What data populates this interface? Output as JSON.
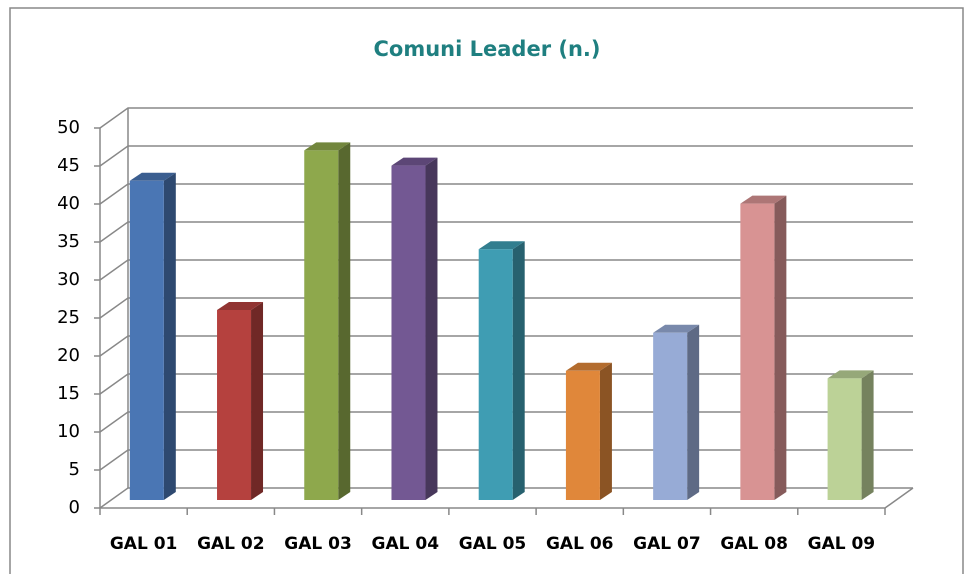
{
  "chart_data": {
    "type": "bar3d",
    "title": "Comuni Leader (n.)",
    "categories": [
      "GAL 01",
      "GAL 02",
      "GAL 03",
      "GAL 04",
      "GAL 05",
      "GAL 06",
      "GAL 07",
      "GAL 08",
      "GAL 09"
    ],
    "values": [
      42,
      25,
      46,
      44,
      33,
      17,
      22,
      39,
      16
    ],
    "colors": [
      "#4a76b4",
      "#b5413e",
      "#8ea84c",
      "#735893",
      "#3f9db3",
      "#e0873a",
      "#97abd6",
      "#d89393",
      "#bcd297"
    ],
    "ylim": [
      0,
      50
    ],
    "yticks": [
      0,
      5,
      10,
      15,
      20,
      25,
      30,
      35,
      40,
      45,
      50
    ],
    "grid": true
  }
}
